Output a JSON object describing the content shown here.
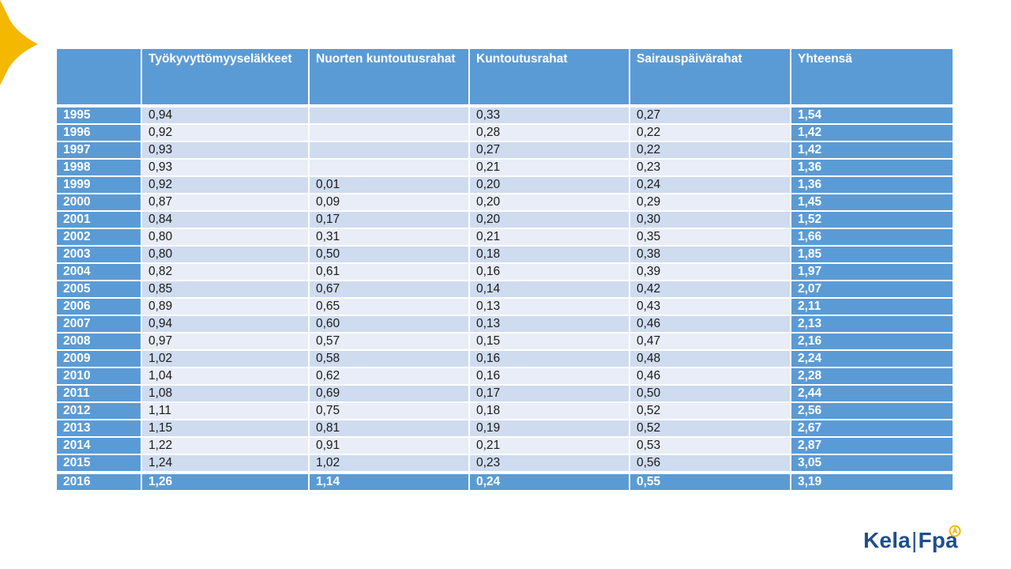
{
  "header": [
    "",
    "Työkyvyttömyyseläkkeet",
    "Nuorten kuntoutusrahat",
    "Kuntoutusrahat",
    "Sairauspäivärahat",
    "Yhteensä"
  ],
  "rows": [
    [
      "1995",
      "0,94",
      "",
      "0,33",
      "0,27",
      "1,54"
    ],
    [
      "1996",
      "0,92",
      "",
      "0,28",
      "0,22",
      "1,42"
    ],
    [
      "1997",
      "0,93",
      "",
      "0,27",
      "0,22",
      "1,42"
    ],
    [
      "1998",
      "0,93",
      "",
      "0,21",
      "0,23",
      "1,36"
    ],
    [
      "1999",
      "0,92",
      "0,01",
      "0,20",
      "0,24",
      "1,36"
    ],
    [
      "2000",
      "0,87",
      "0,09",
      "0,20",
      "0,29",
      "1,45"
    ],
    [
      "2001",
      "0,84",
      "0,17",
      "0,20",
      "0,30",
      "1,52"
    ],
    [
      "2002",
      "0,80",
      "0,31",
      "0,21",
      "0,35",
      "1,66"
    ],
    [
      "2003",
      "0,80",
      "0,50",
      "0,18",
      "0,38",
      "1,85"
    ],
    [
      "2004",
      "0,82",
      "0,61",
      "0,16",
      "0,39",
      "1,97"
    ],
    [
      "2005",
      "0,85",
      "0,67",
      "0,14",
      "0,42",
      "2,07"
    ],
    [
      "2006",
      "0,89",
      "0,65",
      "0,13",
      "0,43",
      "2,11"
    ],
    [
      "2007",
      "0,94",
      "0,60",
      "0,13",
      "0,46",
      "2,13"
    ],
    [
      "2008",
      "0,97",
      "0,57",
      "0,15",
      "0,47",
      "2,16"
    ],
    [
      "2009",
      "1,02",
      "0,58",
      "0,16",
      "0,48",
      "2,24"
    ],
    [
      "2010",
      "1,04",
      "0,62",
      "0,16",
      "0,46",
      "2,28"
    ],
    [
      "2011",
      "1,08",
      "0,69",
      "0,17",
      "0,50",
      "2,44"
    ],
    [
      "2012",
      "1,11",
      "0,75",
      "0,18",
      "0,52",
      "2,56"
    ],
    [
      "2013",
      "1,15",
      "0,81",
      "0,19",
      "0,52",
      "2,67"
    ],
    [
      "2014",
      "1,22",
      "0,91",
      "0,21",
      "0,53",
      "2,87"
    ],
    [
      "2015",
      "1,24",
      "1,02",
      "0,23",
      "0,56",
      "3,05"
    ],
    [
      "2016",
      "1,26",
      "1,14",
      "0,24",
      "0,55",
      "3,19"
    ]
  ],
  "logo": {
    "left": "Kela",
    "separator": "|",
    "right": "Fpa"
  },
  "colors": {
    "header": "#5b9bd5",
    "row_dark": "#cfdbef",
    "row_light": "#e8edf7",
    "logo": "#1f4e8c",
    "star": "#f5b800"
  },
  "icons": {
    "corner": "sun-star-shape",
    "logo_mark": "ribbon-icon"
  }
}
